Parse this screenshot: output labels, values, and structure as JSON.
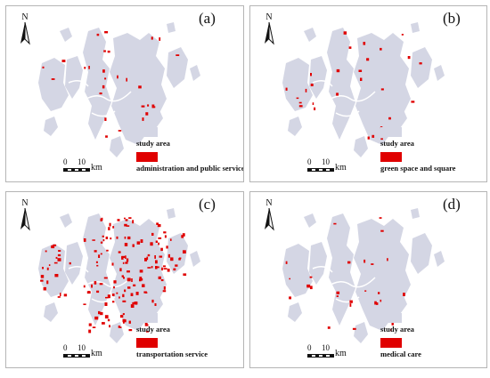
{
  "north_letter": "N",
  "scale": {
    "zero": "0",
    "ten": "10",
    "unit": "km"
  },
  "colors": {
    "study_area": "#d4d6e4",
    "facility": "#e00000",
    "river": "#ffffff"
  },
  "legend_study_area": "study area",
  "panels": [
    {
      "id": "a",
      "label": "(a)",
      "legend_facility": "administration and public service",
      "facility_level": 1
    },
    {
      "id": "b",
      "label": "(b)",
      "legend_facility": "green space and square",
      "facility_level": 1
    },
    {
      "id": "c",
      "label": "(c)",
      "legend_facility": "transportation service",
      "facility_level": 3
    },
    {
      "id": "d",
      "label": "(d)",
      "legend_facility": "medical care",
      "facility_level": 1
    }
  ]
}
